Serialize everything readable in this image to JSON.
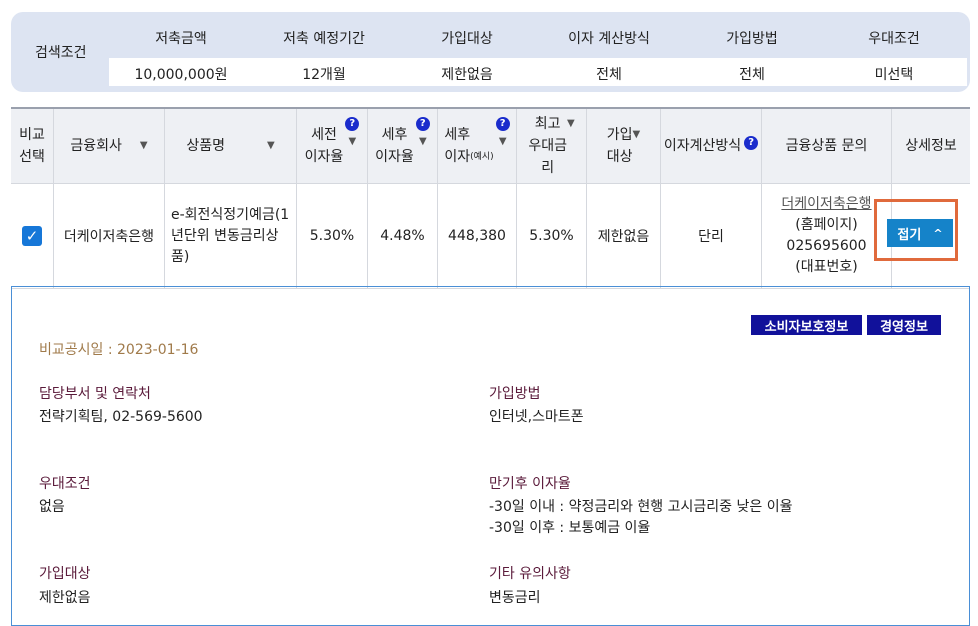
{
  "search": {
    "label": "검색조건",
    "columns": [
      {
        "header": "저축금액",
        "value": "10,000,000원"
      },
      {
        "header": "저축 예정기간",
        "value": "12개월"
      },
      {
        "header": "가입대상",
        "value": "제한없음"
      },
      {
        "header": "이자 계산방식",
        "value": "전체"
      },
      {
        "header": "가입방법",
        "value": "전체"
      },
      {
        "header": "우대조건",
        "value": "미선택"
      }
    ]
  },
  "table": {
    "headers": {
      "compare": "비교\n선택",
      "company": "금융회사",
      "product": "상품명",
      "pretax_rate": "세전\n이자율",
      "posttax_rate": "세후\n이자율",
      "posttax_interest": "세후\n이자",
      "posttax_interest_note": "(예시)",
      "max_rate": "최고\n우대금\n리",
      "target": "가입\n대상",
      "calc": "이자계산방식",
      "inquiry": "금융상품 문의",
      "detail": "상세정보"
    },
    "row": {
      "checked": true,
      "company": "더케이저축은행",
      "product": "e-회전식정기예금(1년단위 변동금리상품)",
      "pretax_rate": "5.30%",
      "posttax_rate": "4.48%",
      "posttax_interest": "448,380",
      "max_rate": "5.30%",
      "target": "제한없음",
      "calc": "단리",
      "inquiry_link": "더케이저축은행",
      "inquiry_home": "(홈페이지)",
      "inquiry_phone": "025695600",
      "inquiry_phone_label": "(대표번호)",
      "fold_label": "접기",
      "fold_icon": "chevron-up-icon"
    }
  },
  "detail": {
    "consumer_btn": "소비자보호정보",
    "mgmt_btn": "경영정보",
    "disclosure_date": "비교공시일 : 2023-01-16",
    "items": [
      {
        "title": "담당부서 및 연락처",
        "value": "전략기획팀, 02-569-5600"
      },
      {
        "title": "가입방법",
        "value": "인터넷,스마트폰"
      },
      {
        "title": "우대조건",
        "value": "없음"
      },
      {
        "title": "만기후 이자율",
        "value": "-30일 이내 : 약정금리와 현행 고시금리중 낮은 이율\n-30일 이후 : 보통예금 이율"
      },
      {
        "title": "가입대상",
        "value": "제한없음"
      },
      {
        "title": "기타 유의사항",
        "value": "변동금리"
      }
    ]
  },
  "colors": {
    "accent": "#1583c9",
    "navy_button": "#11119a",
    "highlight_border": "#e06a3c",
    "help_icon": "#1a2ccc"
  }
}
